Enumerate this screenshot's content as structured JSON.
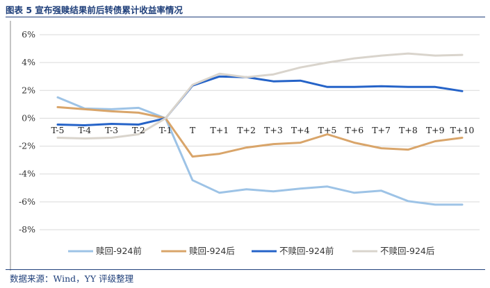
{
  "title": "图表 5 宣布强赎结果前后转债累计收益率情况",
  "source": "数据来源：Wind，YY 评级整理",
  "chart_data": {
    "type": "line",
    "title": "图表 5 宣布强赎结果前后转债累计收益率情况",
    "xlabel": "",
    "ylabel": "",
    "categories": [
      "T-5",
      "T-4",
      "T-3",
      "T-2",
      "T-1",
      "T",
      "T+1",
      "T+2",
      "T+3",
      "T+4",
      "T+5",
      "T+6",
      "T+7",
      "T+8",
      "T+9",
      "T+10"
    ],
    "ylim": [
      -8,
      6
    ],
    "yticks": [
      -8,
      -6,
      -4,
      -2,
      0,
      2,
      4,
      6
    ],
    "ytick_labels": [
      "-8%",
      "-6%",
      "-4%",
      "-2%",
      "0%",
      "2%",
      "4%",
      "6%"
    ],
    "grid": "horizontal",
    "legend_position": "bottom",
    "series": [
      {
        "name": "赎回-924前",
        "color": "#9dc3e6",
        "values": [
          1.5,
          0.7,
          0.65,
          0.75,
          0.0,
          -4.45,
          -5.35,
          -5.1,
          -5.25,
          -5.05,
          -4.9,
          -5.35,
          -5.2,
          -5.95,
          -6.2,
          -6.2
        ]
      },
      {
        "name": "赎回-924后",
        "color": "#d9a56a",
        "values": [
          0.8,
          0.65,
          0.5,
          0.4,
          0.0,
          -2.75,
          -2.55,
          -2.1,
          -1.85,
          -1.75,
          -1.15,
          -1.75,
          -2.15,
          -2.25,
          -1.65,
          -1.4
        ]
      },
      {
        "name": "不赎回-924前",
        "color": "#2563c8",
        "values": [
          -0.45,
          -0.5,
          -0.4,
          -0.45,
          0.0,
          2.35,
          3.0,
          2.95,
          2.65,
          2.7,
          2.25,
          2.25,
          2.3,
          2.25,
          2.25,
          1.95
        ]
      },
      {
        "name": "不赎回-924后",
        "color": "#d9d4cc",
        "values": [
          -1.4,
          -1.45,
          -1.4,
          -1.15,
          0.0,
          2.4,
          3.2,
          2.95,
          3.15,
          3.65,
          4.0,
          4.3,
          4.5,
          4.65,
          4.5,
          4.55
        ]
      }
    ]
  }
}
